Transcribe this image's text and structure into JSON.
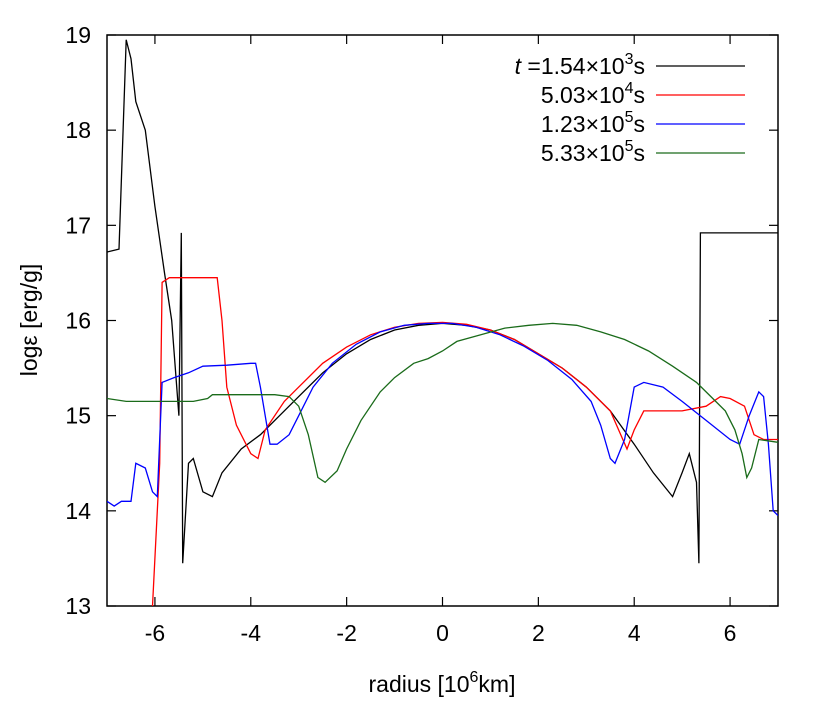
{
  "chart_data": {
    "type": "line",
    "xlabel": "radius [10",
    "xlabel_sup": "6",
    "xlabel_tail": "km]",
    "ylabel": "logε [erg/g]",
    "xlim": [
      -7,
      7
    ],
    "ylim": [
      13,
      19
    ],
    "xticks": [
      -6,
      -4,
      -2,
      0,
      2,
      4,
      6
    ],
    "yticks": [
      13,
      14,
      15,
      16,
      17,
      18,
      19
    ],
    "legend_position": "top-right",
    "legend_prefix": "t =",
    "series": [
      {
        "name": "1.54×10^3 s",
        "label_main": "1.54×10",
        "label_exp": "3",
        "label_unit": "s",
        "color": "#000000",
        "points": [
          [
            -7.0,
            16.72
          ],
          [
            -6.75,
            16.75
          ],
          [
            -6.6,
            18.95
          ],
          [
            -6.5,
            18.75
          ],
          [
            -6.4,
            18.3
          ],
          [
            -6.2,
            18.0
          ],
          [
            -6.0,
            17.2
          ],
          [
            -5.8,
            16.5
          ],
          [
            -5.65,
            16.0
          ],
          [
            -5.5,
            15.0
          ],
          [
            -5.45,
            16.92
          ],
          [
            -5.42,
            13.45
          ],
          [
            -5.3,
            14.5
          ],
          [
            -5.2,
            14.55
          ],
          [
            -5.0,
            14.2
          ],
          [
            -4.8,
            14.15
          ],
          [
            -4.6,
            14.4
          ],
          [
            -4.2,
            14.65
          ],
          [
            -3.8,
            14.8
          ],
          [
            -3.4,
            15.0
          ],
          [
            -3.0,
            15.2
          ],
          [
            -2.5,
            15.45
          ],
          [
            -2.0,
            15.65
          ],
          [
            -1.5,
            15.8
          ],
          [
            -1.0,
            15.9
          ],
          [
            -0.5,
            15.95
          ],
          [
            0.0,
            15.97
          ],
          [
            0.5,
            15.95
          ],
          [
            1.0,
            15.9
          ],
          [
            1.5,
            15.8
          ],
          [
            2.0,
            15.65
          ],
          [
            2.5,
            15.5
          ],
          [
            3.0,
            15.3
          ],
          [
            3.5,
            15.05
          ],
          [
            4.0,
            14.7
          ],
          [
            4.4,
            14.4
          ],
          [
            4.8,
            14.15
          ],
          [
            5.0,
            14.4
          ],
          [
            5.15,
            14.6
          ],
          [
            5.3,
            14.3
          ],
          [
            5.35,
            13.45
          ],
          [
            5.38,
            16.92
          ],
          [
            7.0,
            16.92
          ]
        ]
      },
      {
        "name": "5.03×10^4 s",
        "label_main": "5.03×10",
        "label_exp": "4",
        "label_unit": "s",
        "color": "#ff0000",
        "points": [
          [
            -6.05,
            13.0
          ],
          [
            -5.9,
            14.5
          ],
          [
            -5.85,
            16.4
          ],
          [
            -5.7,
            16.45
          ],
          [
            -5.2,
            16.45
          ],
          [
            -4.7,
            16.45
          ],
          [
            -4.6,
            16.0
          ],
          [
            -4.5,
            15.3
          ],
          [
            -4.3,
            14.9
          ],
          [
            -4.0,
            14.6
          ],
          [
            -3.85,
            14.55
          ],
          [
            -3.7,
            14.85
          ],
          [
            -3.3,
            15.15
          ],
          [
            -3.0,
            15.3
          ],
          [
            -2.5,
            15.55
          ],
          [
            -2.0,
            15.72
          ],
          [
            -1.5,
            15.85
          ],
          [
            -1.0,
            15.93
          ],
          [
            -0.5,
            15.97
          ],
          [
            0.0,
            15.98
          ],
          [
            0.5,
            15.96
          ],
          [
            1.0,
            15.9
          ],
          [
            1.5,
            15.8
          ],
          [
            2.0,
            15.65
          ],
          [
            2.5,
            15.5
          ],
          [
            3.0,
            15.3
          ],
          [
            3.5,
            15.05
          ],
          [
            3.85,
            14.65
          ],
          [
            4.0,
            14.85
          ],
          [
            4.2,
            15.05
          ],
          [
            4.5,
            15.05
          ],
          [
            5.0,
            15.05
          ],
          [
            5.5,
            15.1
          ],
          [
            5.8,
            15.2
          ],
          [
            6.0,
            15.18
          ],
          [
            6.3,
            15.1
          ],
          [
            6.5,
            14.8
          ],
          [
            6.7,
            14.75
          ],
          [
            7.0,
            14.75
          ]
        ]
      },
      {
        "name": "1.23×10^5 s",
        "label_main": "1.23×10",
        "label_exp": "5",
        "label_unit": "s",
        "color": "#0000ff",
        "points": [
          [
            -7.0,
            14.1
          ],
          [
            -6.85,
            14.05
          ],
          [
            -6.7,
            14.1
          ],
          [
            -6.5,
            14.1
          ],
          [
            -6.4,
            14.5
          ],
          [
            -6.2,
            14.45
          ],
          [
            -6.05,
            14.2
          ],
          [
            -5.95,
            14.15
          ],
          [
            -5.85,
            15.35
          ],
          [
            -5.6,
            15.4
          ],
          [
            -5.3,
            15.45
          ],
          [
            -5.0,
            15.52
          ],
          [
            -4.5,
            15.53
          ],
          [
            -4.0,
            15.55
          ],
          [
            -3.9,
            15.55
          ],
          [
            -3.8,
            15.3
          ],
          [
            -3.6,
            14.7
          ],
          [
            -3.45,
            14.7
          ],
          [
            -3.2,
            14.8
          ],
          [
            -3.0,
            15.0
          ],
          [
            -2.7,
            15.3
          ],
          [
            -2.3,
            15.55
          ],
          [
            -1.8,
            15.75
          ],
          [
            -1.3,
            15.88
          ],
          [
            -0.8,
            15.95
          ],
          [
            -0.3,
            15.97
          ],
          [
            0.2,
            15.97
          ],
          [
            0.7,
            15.93
          ],
          [
            1.2,
            15.85
          ],
          [
            1.7,
            15.73
          ],
          [
            2.2,
            15.58
          ],
          [
            2.7,
            15.38
          ],
          [
            3.1,
            15.15
          ],
          [
            3.3,
            14.9
          ],
          [
            3.5,
            14.55
          ],
          [
            3.6,
            14.5
          ],
          [
            3.8,
            14.75
          ],
          [
            4.0,
            15.3
          ],
          [
            4.2,
            15.35
          ],
          [
            4.6,
            15.3
          ],
          [
            5.0,
            15.15
          ],
          [
            5.5,
            14.95
          ],
          [
            6.0,
            14.75
          ],
          [
            6.2,
            14.7
          ],
          [
            6.4,
            15.0
          ],
          [
            6.6,
            15.25
          ],
          [
            6.7,
            15.2
          ],
          [
            6.8,
            14.7
          ],
          [
            6.9,
            14.0
          ],
          [
            7.0,
            13.95
          ]
        ]
      },
      {
        "name": "5.33×10^5 s",
        "label_main": "5.33×10",
        "label_exp": "5",
        "label_unit": "s",
        "color": "#1a6b1a",
        "points": [
          [
            -7.0,
            15.18
          ],
          [
            -6.6,
            15.15
          ],
          [
            -6.0,
            15.15
          ],
          [
            -5.2,
            15.15
          ],
          [
            -4.9,
            15.18
          ],
          [
            -4.8,
            15.22
          ],
          [
            -4.5,
            15.22
          ],
          [
            -4.0,
            15.22
          ],
          [
            -3.5,
            15.22
          ],
          [
            -3.2,
            15.2
          ],
          [
            -3.0,
            15.1
          ],
          [
            -2.8,
            14.8
          ],
          [
            -2.6,
            14.35
          ],
          [
            -2.45,
            14.3
          ],
          [
            -2.2,
            14.42
          ],
          [
            -2.0,
            14.65
          ],
          [
            -1.7,
            14.95
          ],
          [
            -1.3,
            15.25
          ],
          [
            -1.0,
            15.4
          ],
          [
            -0.6,
            15.55
          ],
          [
            -0.3,
            15.6
          ],
          [
            0.0,
            15.68
          ],
          [
            0.3,
            15.78
          ],
          [
            0.8,
            15.85
          ],
          [
            1.3,
            15.92
          ],
          [
            1.8,
            15.95
          ],
          [
            2.3,
            15.97
          ],
          [
            2.8,
            15.95
          ],
          [
            3.3,
            15.88
          ],
          [
            3.8,
            15.8
          ],
          [
            4.3,
            15.68
          ],
          [
            4.8,
            15.52
          ],
          [
            5.3,
            15.35
          ],
          [
            5.6,
            15.2
          ],
          [
            5.9,
            15.05
          ],
          [
            6.1,
            14.85
          ],
          [
            6.25,
            14.6
          ],
          [
            6.35,
            14.35
          ],
          [
            6.45,
            14.45
          ],
          [
            6.6,
            14.75
          ],
          [
            7.0,
            14.72
          ]
        ]
      }
    ]
  }
}
